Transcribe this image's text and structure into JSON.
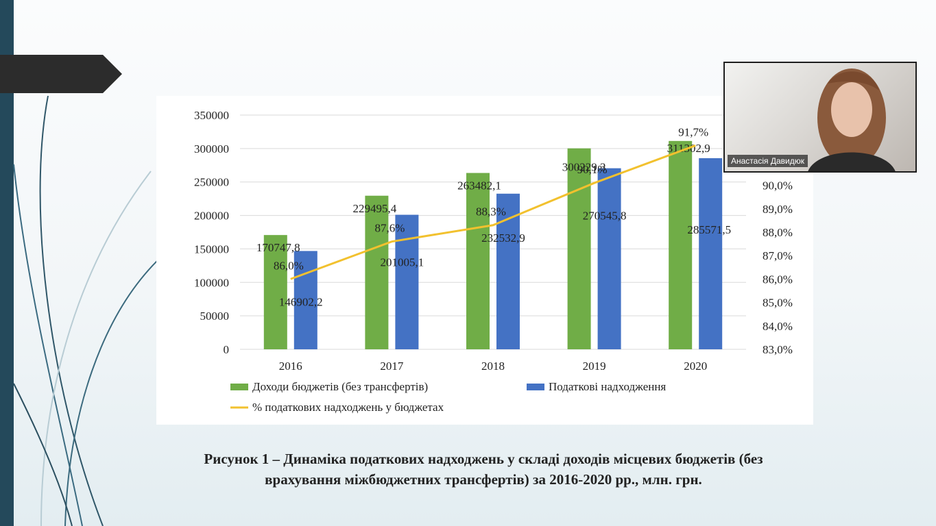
{
  "chart_data": {
    "type": "bar",
    "categories": [
      "2016",
      "2017",
      "2018",
      "2019",
      "2020"
    ],
    "series": [
      {
        "name": "Доходи бюджетів (без трансфертів)",
        "type": "bar",
        "color": "#70ad47",
        "values": [
          170747.8,
          229495.4,
          263482.1,
          300229.3,
          311302.9
        ],
        "labels": [
          "170747,8",
          "229495,4",
          "263482,1",
          "300229,3",
          "311302,9"
        ]
      },
      {
        "name": "Податкові надходження",
        "type": "bar",
        "color": "#4472c4",
        "values": [
          146902.2,
          201005.1,
          232532.9,
          270545.8,
          285571.5
        ],
        "labels": [
          "146902,2",
          "201005,1",
          "232532,9",
          "270545,8",
          "285571,5"
        ]
      },
      {
        "name": "% податкових надходжень у бюджетах",
        "type": "line",
        "axis": "right",
        "color": "#f2c12e",
        "values": [
          86.0,
          87.6,
          88.3,
          90.1,
          91.7
        ],
        "labels": [
          "86,0%",
          "87,6%",
          "88,3%",
          "90,1%",
          "91,7%"
        ]
      }
    ],
    "y_left": {
      "min": 0,
      "max": 350000,
      "ticks": [
        "0",
        "50000",
        "100000",
        "150000",
        "200000",
        "250000",
        "300000",
        "350000"
      ]
    },
    "y_right": {
      "min": 83.0,
      "max": 93.0,
      "ticks": [
        "83,0%",
        "84,0%",
        "85,0%",
        "86,0%",
        "87,0%",
        "88,0%",
        "89,0%",
        "90,0%"
      ]
    },
    "gridlines": true,
    "legend": "bottom"
  },
  "caption": {
    "line1": "Рисунок 1 – Динаміка податкових надходжень у складі доходів місцевих бюджетів (без",
    "line2": "врахування міжбюджетних трансфертів) за 2016-2020 рр., млн. грн."
  },
  "video": {
    "participant_name": "Анастасія Давидюк"
  },
  "colors": {
    "sidebar": "#24495b",
    "banner": "#2c2c2c",
    "text": "#222222"
  }
}
